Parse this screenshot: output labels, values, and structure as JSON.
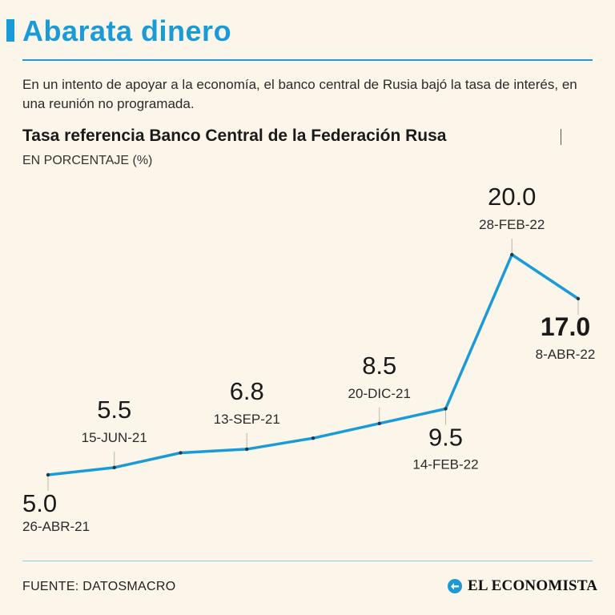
{
  "headline": "Abarata dinero",
  "lede": "En un intento de apoyar a la economía, el banco central de Rusia bajó la tasa de interés, en una reunión no programada.",
  "chart_data": {
    "type": "line",
    "title": "Tasa referencia Banco Central de la Federación Rusa",
    "subtitle": "EN PORCENTAJE (%)",
    "xlabel": "",
    "ylabel": "",
    "ylim": [
      5,
      20
    ],
    "grid": false,
    "color": "#1a9bd7",
    "points": [
      {
        "date": "26-ABR-21",
        "value": 5.0,
        "label": "5.0",
        "labeled": true,
        "label_side": "below",
        "bold": false
      },
      {
        "date": "15-JUN-21",
        "value": 5.5,
        "label": "5.5",
        "labeled": true,
        "label_side": "above",
        "bold": false
      },
      {
        "date": "",
        "value": 6.5,
        "label": "",
        "labeled": false
      },
      {
        "date": "13-SEP-21",
        "value": 6.75,
        "label": "6.8",
        "labeled": true,
        "label_side": "above",
        "bold": false
      },
      {
        "date": "",
        "value": 7.5,
        "label": "",
        "labeled": false
      },
      {
        "date": "20-DIC-21",
        "value": 8.5,
        "label": "8.5",
        "labeled": true,
        "label_side": "above",
        "bold": false
      },
      {
        "date": "14-FEB-22",
        "value": 9.5,
        "label": "9.5",
        "labeled": true,
        "label_side": "below",
        "bold": false
      },
      {
        "date": "28-FEB-22",
        "value": 20.0,
        "label": "20.0",
        "labeled": true,
        "label_side": "above",
        "bold": false
      },
      {
        "date": "8-ABR-22",
        "value": 17.0,
        "label": "17.0",
        "labeled": true,
        "label_side": "below",
        "bold": true
      }
    ]
  },
  "footer": {
    "source": "FUENTE: DATOSMACRO",
    "brand": "EL ECONOMISTA"
  }
}
